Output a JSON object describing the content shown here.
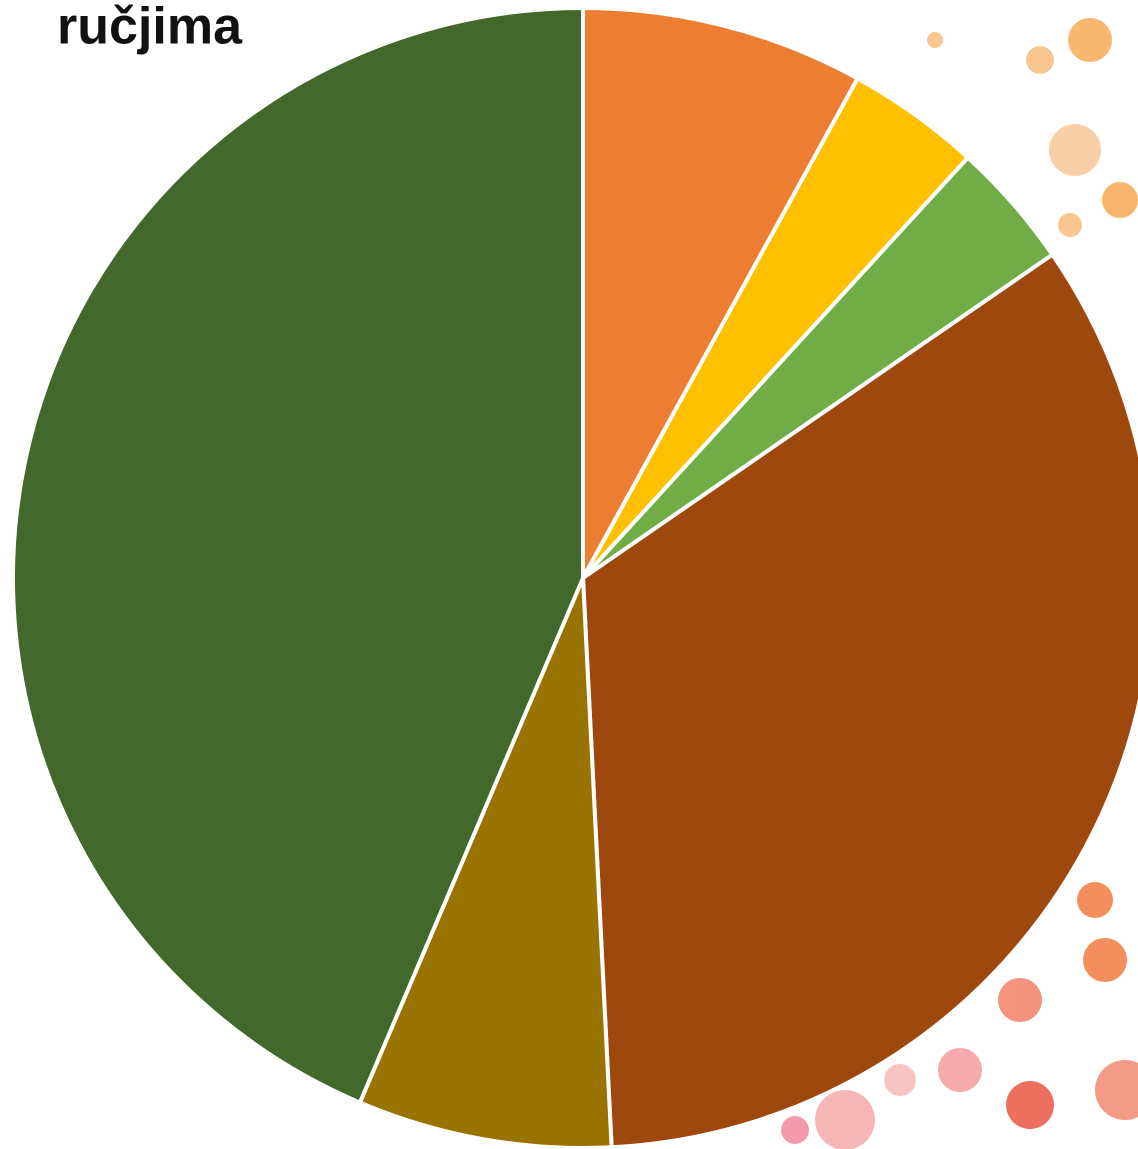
{
  "chart_data": {
    "type": "pie",
    "title": "ručjima",
    "categories": [
      null,
      null,
      null,
      null,
      null,
      null
    ],
    "values": [
      8,
      3.8,
      3.6,
      33.8,
      7.2,
      43.6
    ],
    "colors": [
      "#ed7d31",
      "#ffc000",
      "#70ad47",
      "#9e480e",
      "#997300",
      "#43682b"
    ]
  }
}
